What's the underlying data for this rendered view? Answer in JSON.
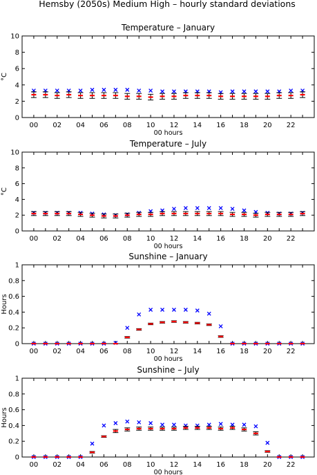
{
  "figure_title": "Hemsby (2050s) Medium High – hourly standard deviations",
  "colors": {
    "model": "#0000ff",
    "series": "#ff0000",
    "errorbar": "#000000"
  },
  "chart_data": [
    {
      "type": "scatter",
      "title": "Temperature – January",
      "xlabel": "00 hours",
      "ylabel": "°C",
      "ylim": [
        0,
        10
      ],
      "yticks": [
        "0",
        "2",
        "4",
        "6",
        "8",
        "10"
      ],
      "xlim": [
        -1,
        24
      ],
      "xtick_labels": [
        "00",
        "02",
        "04",
        "06",
        "08",
        "10",
        "12",
        "14",
        "16",
        "18",
        "20",
        "22"
      ],
      "x": [
        0,
        1,
        2,
        3,
        4,
        5,
        6,
        7,
        8,
        9,
        10,
        11,
        12,
        13,
        14,
        15,
        16,
        17,
        18,
        19,
        20,
        21,
        22,
        23
      ],
      "series": [
        {
          "marker": "x",
          "color": "#0000ff",
          "values": [
            3.3,
            3.3,
            3.3,
            3.3,
            3.3,
            3.4,
            3.4,
            3.4,
            3.4,
            3.3,
            3.3,
            3.2,
            3.2,
            3.2,
            3.2,
            3.2,
            3.1,
            3.2,
            3.2,
            3.2,
            3.2,
            3.2,
            3.3,
            3.3
          ]
        },
        {
          "marker": "dash",
          "color": "#ff0000",
          "errorbar": true,
          "values": [
            2.8,
            2.8,
            2.7,
            2.8,
            2.7,
            2.7,
            2.7,
            2.7,
            2.6,
            2.6,
            2.5,
            2.6,
            2.6,
            2.7,
            2.7,
            2.7,
            2.6,
            2.6,
            2.6,
            2.6,
            2.6,
            2.7,
            2.7,
            2.8
          ],
          "err": [
            0.35,
            0.35,
            0.35,
            0.35,
            0.35,
            0.35,
            0.35,
            0.35,
            0.35,
            0.35,
            0.35,
            0.35,
            0.35,
            0.35,
            0.35,
            0.35,
            0.35,
            0.35,
            0.35,
            0.35,
            0.35,
            0.35,
            0.35,
            0.35
          ]
        }
      ]
    },
    {
      "type": "scatter",
      "title": "Temperature – July",
      "xlabel": "00 hours",
      "ylabel": "°C",
      "ylim": [
        0,
        10
      ],
      "yticks": [
        "0",
        "2",
        "4",
        "6",
        "8",
        "10"
      ],
      "xlim": [
        -1,
        24
      ],
      "xtick_labels": [
        "00",
        "02",
        "04",
        "06",
        "08",
        "10",
        "12",
        "14",
        "16",
        "18",
        "20",
        "22"
      ],
      "x": [
        0,
        1,
        2,
        3,
        4,
        5,
        6,
        7,
        8,
        9,
        10,
        11,
        12,
        13,
        14,
        15,
        16,
        17,
        18,
        19,
        20,
        21,
        22,
        23
      ],
      "series": [
        {
          "marker": "x",
          "color": "#0000ff",
          "values": [
            2.3,
            2.3,
            2.3,
            2.3,
            2.3,
            2.2,
            2.1,
            2.0,
            2.1,
            2.3,
            2.5,
            2.6,
            2.8,
            2.9,
            2.9,
            2.9,
            2.9,
            2.8,
            2.6,
            2.4,
            2.3,
            2.2,
            2.2,
            2.3
          ]
        },
        {
          "marker": "dash",
          "color": "#ff0000",
          "errorbar": true,
          "values": [
            2.2,
            2.2,
            2.2,
            2.2,
            2.1,
            2.0,
            1.9,
            1.9,
            2.0,
            2.1,
            2.1,
            2.2,
            2.2,
            2.2,
            2.2,
            2.2,
            2.2,
            2.1,
            2.1,
            2.0,
            2.1,
            2.1,
            2.1,
            2.2
          ],
          "err": [
            0.25,
            0.25,
            0.25,
            0.25,
            0.25,
            0.25,
            0.25,
            0.25,
            0.25,
            0.25,
            0.25,
            0.25,
            0.25,
            0.25,
            0.25,
            0.25,
            0.25,
            0.25,
            0.25,
            0.25,
            0.25,
            0.25,
            0.25,
            0.25
          ]
        }
      ]
    },
    {
      "type": "scatter",
      "title": "Sunshine – January",
      "xlabel": "00 hours",
      "ylabel": "Hours",
      "ylim": [
        0,
        1
      ],
      "yticks": [
        "0",
        "0.2",
        "0.4",
        "0.6",
        "0.8",
        "1"
      ],
      "xlim": [
        -1,
        24
      ],
      "xtick_labels": [
        "00",
        "02",
        "04",
        "06",
        "08",
        "10",
        "12",
        "14",
        "16",
        "18",
        "20",
        "22"
      ],
      "x": [
        0,
        1,
        2,
        3,
        4,
        5,
        6,
        7,
        8,
        9,
        10,
        11,
        12,
        13,
        14,
        15,
        16,
        17,
        18,
        19,
        20,
        21,
        22,
        23
      ],
      "series": [
        {
          "marker": "x",
          "color": "#0000ff",
          "values": [
            0,
            0,
            0,
            0,
            0,
            0,
            0,
            0.01,
            0.2,
            0.37,
            0.43,
            0.43,
            0.43,
            0.43,
            0.42,
            0.38,
            0.22,
            0,
            0,
            0,
            0,
            0,
            0,
            0
          ]
        },
        {
          "marker": "dash",
          "color": "#ff0000",
          "errorbar": true,
          "values": [
            0,
            0,
            0,
            0,
            0,
            0,
            0,
            0,
            0.08,
            0.18,
            0.25,
            0.27,
            0.28,
            0.27,
            0.26,
            0.24,
            0.09,
            0,
            0,
            0,
            0,
            0,
            0,
            0
          ],
          "err": [
            0,
            0,
            0,
            0,
            0,
            0,
            0,
            0,
            0.01,
            0.01,
            0.01,
            0.01,
            0.01,
            0.01,
            0.01,
            0.01,
            0.01,
            0,
            0,
            0,
            0,
            0,
            0,
            0
          ]
        }
      ]
    },
    {
      "type": "scatter",
      "title": "Sunshine – July",
      "xlabel": "00 hours",
      "ylabel": "Hours",
      "ylim": [
        0,
        1
      ],
      "yticks": [
        "0",
        "0.2",
        "0.4",
        "0.6",
        "0.8",
        "1"
      ],
      "xlim": [
        -1,
        24
      ],
      "xtick_labels": [
        "00",
        "02",
        "04",
        "06",
        "08",
        "10",
        "12",
        "14",
        "16",
        "18",
        "20",
        "22"
      ],
      "x": [
        0,
        1,
        2,
        3,
        4,
        5,
        6,
        7,
        8,
        9,
        10,
        11,
        12,
        13,
        14,
        15,
        16,
        17,
        18,
        19,
        20,
        21,
        22,
        23
      ],
      "series": [
        {
          "marker": "x",
          "color": "#0000ff",
          "values": [
            0,
            0,
            0,
            0,
            0,
            0.17,
            0.4,
            0.43,
            0.45,
            0.44,
            0.43,
            0.41,
            0.41,
            0.4,
            0.4,
            0.41,
            0.42,
            0.41,
            0.41,
            0.39,
            0.18,
            0,
            0,
            0
          ]
        },
        {
          "marker": "dash",
          "color": "#ff0000",
          "errorbar": true,
          "values": [
            0,
            0,
            0,
            0,
            0,
            0.06,
            0.26,
            0.33,
            0.35,
            0.36,
            0.36,
            0.36,
            0.36,
            0.37,
            0.37,
            0.37,
            0.36,
            0.37,
            0.35,
            0.3,
            0.07,
            0,
            0,
            0
          ],
          "err": [
            0,
            0,
            0,
            0,
            0,
            0.01,
            0.01,
            0.02,
            0.02,
            0.02,
            0.02,
            0.02,
            0.02,
            0.02,
            0.02,
            0.02,
            0.02,
            0.02,
            0.02,
            0.02,
            0.01,
            0,
            0,
            0
          ]
        }
      ]
    }
  ]
}
